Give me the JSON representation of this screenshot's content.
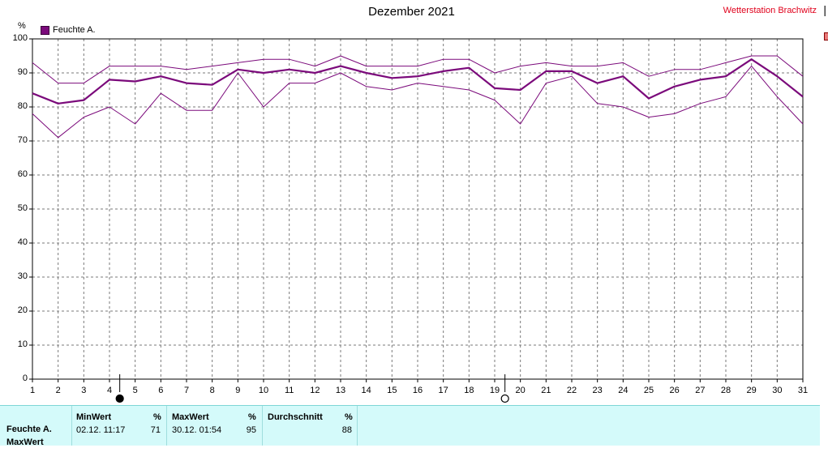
{
  "header": {
    "title": "Dezember 2021",
    "station": "Wetterstation Brachwitz",
    "edge_mark": "|"
  },
  "chart_data": {
    "type": "line",
    "title": "Dezember 2021",
    "ylabel": "%",
    "ylim": [
      0,
      100
    ],
    "y_ticks": [
      "0",
      "10",
      "20",
      "30",
      "40",
      "50",
      "60",
      "70",
      "80",
      "90",
      "100"
    ],
    "x_ticks": [
      "1",
      "2",
      "3",
      "4",
      "5",
      "6",
      "7",
      "8",
      "9",
      "10",
      "11",
      "12",
      "13",
      "14",
      "15",
      "16",
      "17",
      "18",
      "19",
      "20",
      "21",
      "22",
      "23",
      "24",
      "25",
      "26",
      "27",
      "28",
      "29",
      "30",
      "31"
    ],
    "x": [
      1,
      2,
      3,
      4,
      5,
      6,
      7,
      8,
      9,
      10,
      11,
      12,
      13,
      14,
      15,
      16,
      17,
      18,
      19,
      20,
      21,
      22,
      23,
      24,
      25,
      26,
      27,
      28,
      29,
      30,
      31
    ],
    "grid": true,
    "legend_position": "top-left",
    "legend": "Feuchte A.",
    "series": [
      {
        "name": "Feuchte A.",
        "role": "average",
        "values": [
          84,
          81,
          82,
          88,
          87.5,
          89,
          87,
          86.5,
          91,
          90,
          91,
          90,
          92,
          90,
          88.5,
          89,
          90.5,
          91.5,
          85.5,
          85,
          90.5,
          90.5,
          87,
          89,
          82.5,
          86,
          88,
          89,
          94,
          89,
          83
        ]
      },
      {
        "role": "max",
        "values": [
          93,
          87,
          87,
          92,
          92,
          92,
          91,
          92,
          93,
          94,
          94,
          92,
          95,
          92,
          92,
          92,
          94,
          94,
          90,
          92,
          93,
          92,
          92,
          93,
          89,
          91,
          91,
          93,
          95,
          95,
          89
        ]
      },
      {
        "role": "min",
        "values": [
          78,
          71,
          77,
          80,
          75,
          84,
          79,
          79,
          90,
          80,
          87,
          87,
          90,
          86,
          85,
          87,
          86,
          85,
          82,
          75,
          87,
          89,
          81,
          80,
          77,
          78,
          81,
          83,
          92,
          83,
          75
        ]
      }
    ],
    "colors": {
      "line": "#7b0a7b",
      "grid": "#7a7a7a"
    },
    "moon_markers": [
      {
        "day": 4,
        "symbol": "full-moon-icon"
      },
      {
        "day": 19,
        "symbol": "new-moon-icon"
      }
    ]
  },
  "summary": {
    "label": "Feuchte A.",
    "label2": "MaxWert",
    "min": {
      "header": "MinWert",
      "unit": "%",
      "time": "02.12.  11:17",
      "value": "71"
    },
    "max": {
      "header": "MaxWert",
      "unit": "%",
      "time": "30.12.  01:54",
      "value": "95"
    },
    "avg": {
      "header": "Durchschnitt",
      "unit": "%",
      "value": "88"
    }
  }
}
